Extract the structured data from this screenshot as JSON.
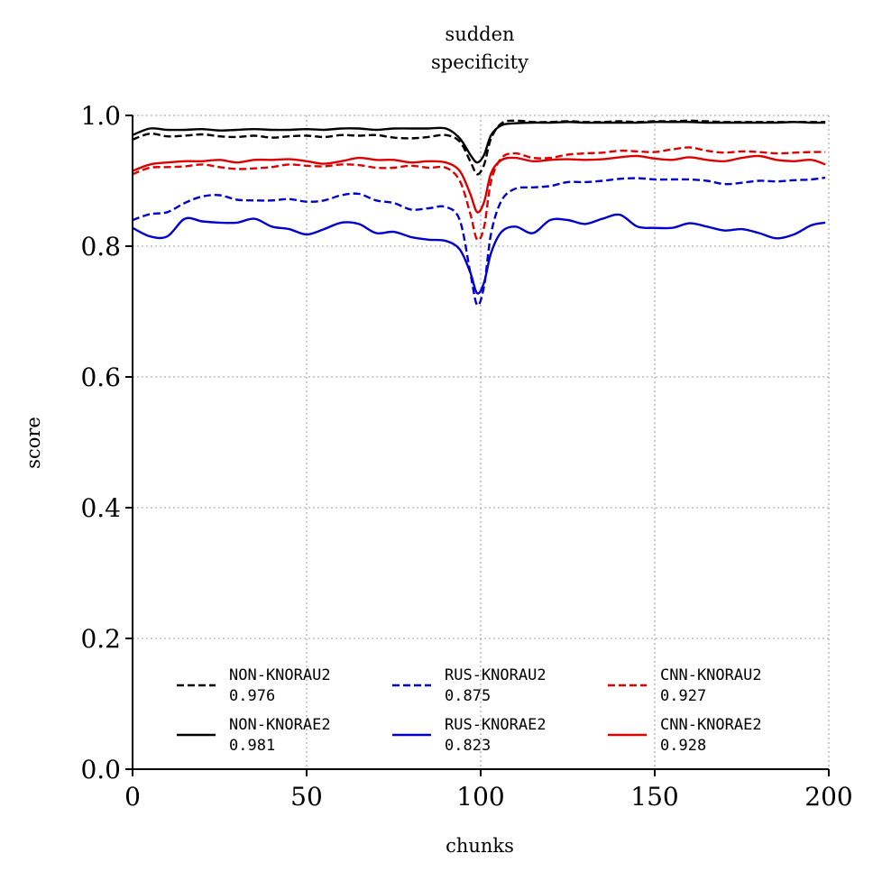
{
  "chart_data": {
    "type": "line",
    "title": "sudden",
    "subtitle": "specificity",
    "xlabel": "chunks",
    "ylabel": "score",
    "xlim": [
      0,
      200
    ],
    "ylim": [
      0.0,
      1.0
    ],
    "xticks": [
      "0",
      "50",
      "100",
      "150",
      "200"
    ],
    "yticks": [
      "0.0",
      "0.2",
      "0.4",
      "0.6",
      "0.8",
      "1.0"
    ],
    "grid": true,
    "legend_position": "bottom",
    "x": [
      0,
      5,
      10,
      15,
      20,
      25,
      30,
      35,
      40,
      45,
      50,
      55,
      60,
      65,
      70,
      75,
      80,
      85,
      90,
      94,
      97,
      99,
      101,
      103,
      106,
      110,
      115,
      120,
      125,
      130,
      135,
      140,
      145,
      150,
      155,
      160,
      165,
      170,
      175,
      180,
      185,
      190,
      195,
      199
    ],
    "series": [
      {
        "name": "NON-KNORAU2",
        "score": "0.976",
        "color": "#000000",
        "style": "dashed",
        "values": [
          0.963,
          0.972,
          0.968,
          0.969,
          0.971,
          0.968,
          0.967,
          0.969,
          0.966,
          0.968,
          0.969,
          0.967,
          0.97,
          0.969,
          0.97,
          0.966,
          0.965,
          0.967,
          0.97,
          0.96,
          0.93,
          0.91,
          0.925,
          0.965,
          0.988,
          0.992,
          0.99,
          0.99,
          0.991,
          0.99,
          0.99,
          0.991,
          0.99,
          0.991,
          0.991,
          0.992,
          0.991,
          0.99,
          0.99,
          0.99,
          0.99,
          0.99,
          0.99,
          0.99
        ]
      },
      {
        "name": "RUS-KNORAU2",
        "score": "0.875",
        "color": "#0000cc",
        "style": "dashed",
        "values": [
          0.84,
          0.849,
          0.852,
          0.866,
          0.876,
          0.878,
          0.871,
          0.87,
          0.87,
          0.872,
          0.868,
          0.87,
          0.878,
          0.88,
          0.87,
          0.866,
          0.856,
          0.858,
          0.86,
          0.84,
          0.76,
          0.71,
          0.74,
          0.82,
          0.87,
          0.888,
          0.89,
          0.892,
          0.898,
          0.898,
          0.9,
          0.903,
          0.904,
          0.902,
          0.902,
          0.902,
          0.9,
          0.895,
          0.897,
          0.9,
          0.899,
          0.901,
          0.902,
          0.905
        ]
      },
      {
        "name": "CNN-KNORAU2",
        "score": "0.927",
        "color": "#dd0000",
        "style": "dashed",
        "values": [
          0.91,
          0.92,
          0.921,
          0.922,
          0.925,
          0.921,
          0.918,
          0.919,
          0.921,
          0.925,
          0.923,
          0.922,
          0.925,
          0.924,
          0.92,
          0.92,
          0.923,
          0.92,
          0.92,
          0.9,
          0.85,
          0.81,
          0.83,
          0.9,
          0.935,
          0.942,
          0.935,
          0.935,
          0.94,
          0.942,
          0.943,
          0.946,
          0.945,
          0.944,
          0.948,
          0.951,
          0.946,
          0.943,
          0.945,
          0.944,
          0.942,
          0.943,
          0.944,
          0.944
        ]
      },
      {
        "name": "NON-KNORAE2",
        "score": "0.981",
        "color": "#000000",
        "style": "solid",
        "values": [
          0.97,
          0.98,
          0.978,
          0.978,
          0.979,
          0.977,
          0.978,
          0.979,
          0.978,
          0.978,
          0.979,
          0.978,
          0.98,
          0.98,
          0.978,
          0.98,
          0.98,
          0.98,
          0.98,
          0.965,
          0.94,
          0.928,
          0.94,
          0.97,
          0.985,
          0.988,
          0.989,
          0.989,
          0.99,
          0.989,
          0.989,
          0.989,
          0.989,
          0.99,
          0.99,
          0.99,
          0.989,
          0.989,
          0.989,
          0.989,
          0.989,
          0.99,
          0.989,
          0.989
        ]
      },
      {
        "name": "RUS-KNORAE2",
        "score": "0.823",
        "color": "#0000cc",
        "style": "solid",
        "values": [
          0.828,
          0.815,
          0.815,
          0.842,
          0.838,
          0.836,
          0.836,
          0.842,
          0.83,
          0.826,
          0.818,
          0.826,
          0.836,
          0.834,
          0.82,
          0.822,
          0.814,
          0.81,
          0.808,
          0.795,
          0.76,
          0.728,
          0.745,
          0.79,
          0.822,
          0.83,
          0.82,
          0.84,
          0.84,
          0.834,
          0.842,
          0.848,
          0.83,
          0.828,
          0.828,
          0.835,
          0.83,
          0.824,
          0.826,
          0.82,
          0.812,
          0.818,
          0.832,
          0.836
        ]
      },
      {
        "name": "CNN-KNORAE2",
        "score": "0.928",
        "color": "#dd0000",
        "style": "solid",
        "values": [
          0.915,
          0.925,
          0.928,
          0.93,
          0.93,
          0.932,
          0.928,
          0.932,
          0.932,
          0.933,
          0.93,
          0.926,
          0.93,
          0.935,
          0.932,
          0.932,
          0.928,
          0.93,
          0.928,
          0.915,
          0.88,
          0.852,
          0.868,
          0.912,
          0.932,
          0.935,
          0.93,
          0.932,
          0.933,
          0.932,
          0.933,
          0.936,
          0.938,
          0.934,
          0.932,
          0.936,
          0.932,
          0.93,
          0.935,
          0.938,
          0.932,
          0.93,
          0.932,
          0.925
        ]
      }
    ]
  }
}
